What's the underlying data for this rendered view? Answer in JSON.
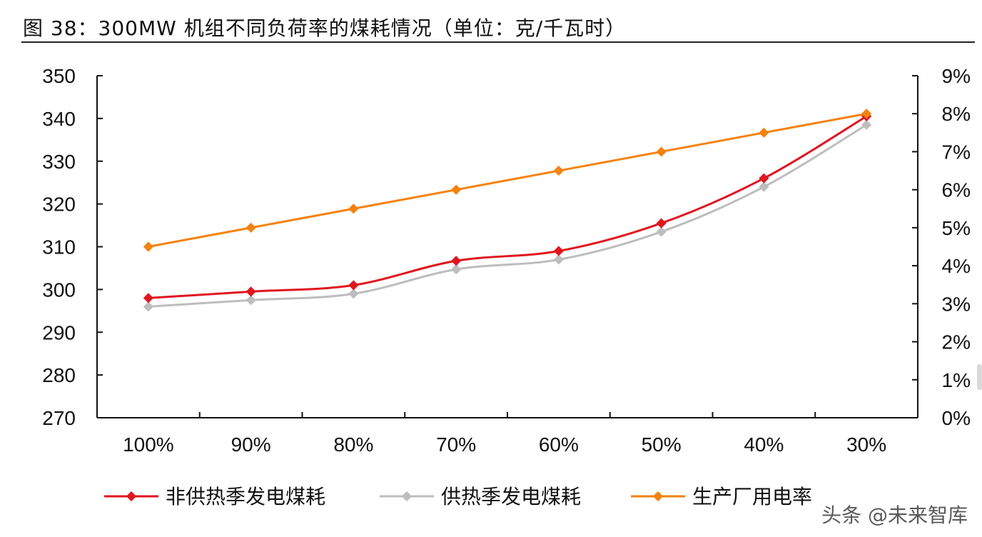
{
  "chart_data": {
    "type": "line",
    "title": "图 38：300MW 机组不同负荷率的煤耗情况（单位：克/千瓦时）",
    "categories": [
      "100%",
      "90%",
      "80%",
      "70%",
      "60%",
      "50%",
      "40%",
      "30%"
    ],
    "y_left": {
      "ylim": [
        270,
        350
      ],
      "ticks": [
        "350",
        "340",
        "330",
        "320",
        "310",
        "300",
        "290",
        "280",
        "270"
      ]
    },
    "y_right": {
      "ylim": [
        0,
        9
      ],
      "ticks": [
        "9%",
        "8%",
        "7%",
        "6%",
        "5%",
        "4%",
        "3%",
        "2%",
        "1%",
        "0%"
      ]
    },
    "series": [
      {
        "name": "非供热季发电煤耗",
        "axis": "left",
        "color": "#e0161f",
        "values": [
          298,
          299.5,
          301,
          306.7,
          309,
          315.5,
          326,
          340.5
        ]
      },
      {
        "name": "供热季发电煤耗",
        "axis": "left",
        "color": "#bdbdbd",
        "values": [
          296,
          297.5,
          299,
          304.7,
          307,
          313.5,
          324,
          338.5
        ]
      },
      {
        "name": "生产厂用电率",
        "axis": "right",
        "color": "#f5820f",
        "values": [
          4.5,
          5.0,
          5.5,
          6.0,
          6.5,
          7.0,
          7.5,
          8.0
        ]
      }
    ],
    "legend_position": "bottom",
    "grid": false
  },
  "watermark": "头条 @未来智库"
}
